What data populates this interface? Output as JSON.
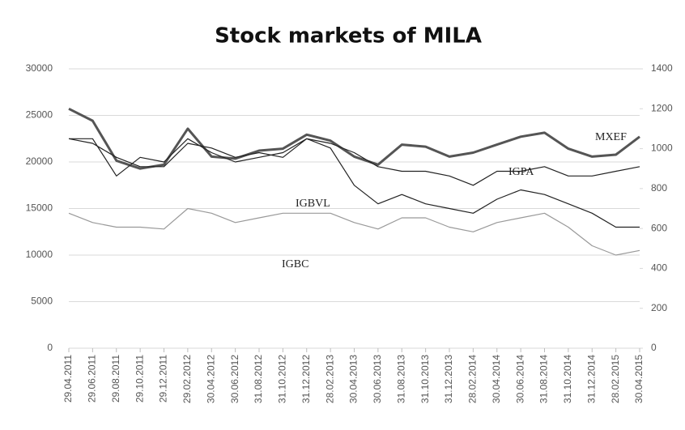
{
  "chart_data": {
    "type": "line",
    "title": "Stock markets of MILA",
    "categories": [
      "29.04.2011",
      "29.06.2011",
      "29.08.2011",
      "29.10.2011",
      "29.12.2011",
      "29.02.2012",
      "30.04.2012",
      "30.06.2012",
      "31.08.2012",
      "31.10.2012",
      "31.12.2012",
      "28.02.2013",
      "30.04.2013",
      "30.06.2013",
      "31.08.2013",
      "31.10.2013",
      "31.12.2013",
      "28.02.2014",
      "30.04.2014",
      "30.06.2014",
      "31.08.2014",
      "31.10.2014",
      "31.12.2014",
      "28.02.2015",
      "30.04.2015"
    ],
    "series": [
      {
        "name": "MXEF",
        "color": "#555555",
        "axis": "y2",
        "values": [
          1200,
          1140,
          940,
          900,
          920,
          1100,
          960,
          950,
          990,
          1000,
          1070,
          1040,
          960,
          920,
          1020,
          1010,
          960,
          980,
          1020,
          1060,
          1080,
          1000,
          960,
          970,
          1060
        ]
      },
      {
        "name": "IGPA",
        "color": "#222222",
        "values": [
          22500,
          22000,
          20500,
          19500,
          19500,
          22000,
          21500,
          20500,
          21000,
          20500,
          22500,
          22000,
          21000,
          19500,
          19000,
          19000,
          18500,
          17500,
          19000,
          19000,
          19500,
          18500,
          18500,
          19000,
          19500
        ]
      },
      {
        "name": "IGBVL",
        "color": "#222222",
        "values": [
          22500,
          22500,
          18500,
          20500,
          20000,
          22500,
          21000,
          20000,
          20500,
          21000,
          22500,
          21500,
          17500,
          15500,
          16500,
          15500,
          15000,
          14500,
          16000,
          17000,
          16500,
          15500,
          14500,
          13000,
          13000
        ]
      },
      {
        "name": "IGBC",
        "color": "#999999",
        "values": [
          14500,
          13500,
          13000,
          13000,
          12800,
          15000,
          14500,
          13500,
          14000,
          14500,
          14500,
          14500,
          13500,
          12800,
          14000,
          14000,
          13000,
          12500,
          13500,
          14000,
          14500,
          13000,
          11000,
          10000,
          10500
        ]
      }
    ],
    "ylim": [
      0,
      30000
    ],
    "yticks": [
      0,
      5000,
      10000,
      15000,
      20000,
      25000,
      30000
    ],
    "y2lim": [
      0,
      1400
    ],
    "y2ticks": [
      0,
      200,
      400,
      600,
      800,
      1000,
      1200,
      1400
    ],
    "grid": true
  }
}
